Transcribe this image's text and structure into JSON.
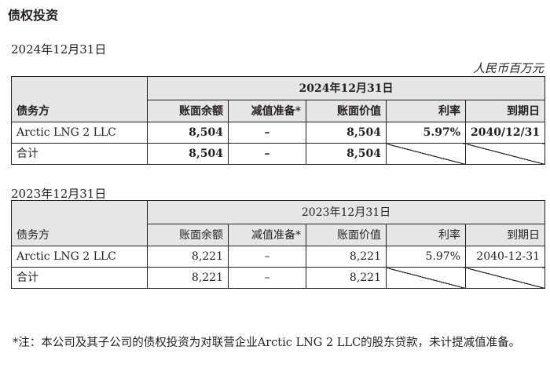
{
  "title": "债权投资",
  "unit": "人民币百万元",
  "tables": [
    {
      "heading": "2024年12月31日",
      "span_header": "2024年12月31日",
      "debtor_header": "债务方",
      "columns": [
        "账面余额",
        "减值准备*",
        "账面价值",
        "利率",
        "到期日"
      ],
      "rows": [
        {
          "debtor": "Arctic LNG 2 LLC",
          "gross": "8,504",
          "impairment": "–",
          "net": "8,504",
          "rate": "5.97%",
          "maturity": "2040/12/31"
        },
        {
          "debtor": "合计",
          "gross": "8,504",
          "impairment": "–",
          "net": "8,504"
        }
      ]
    },
    {
      "heading": "2023年12月31日",
      "span_header": "2023年12月31日",
      "debtor_header": "债务方",
      "columns": [
        "账面余额",
        "减值准备*",
        "账面价值",
        "利率",
        "到期日"
      ],
      "rows": [
        {
          "debtor": "Arctic LNG 2 LLC",
          "gross": "8,221",
          "impairment": "–",
          "net": "8,221",
          "rate": "5.97%",
          "maturity": "2040-12-31"
        },
        {
          "debtor": "合计",
          "gross": "8,221",
          "impairment": "–",
          "net": "8,221"
        }
      ]
    }
  ],
  "footnote": "*注：本公司及其子公司的债权投资为对联营企业Arctic LNG 2 LLC的股东贷款，未计提减值准备。"
}
